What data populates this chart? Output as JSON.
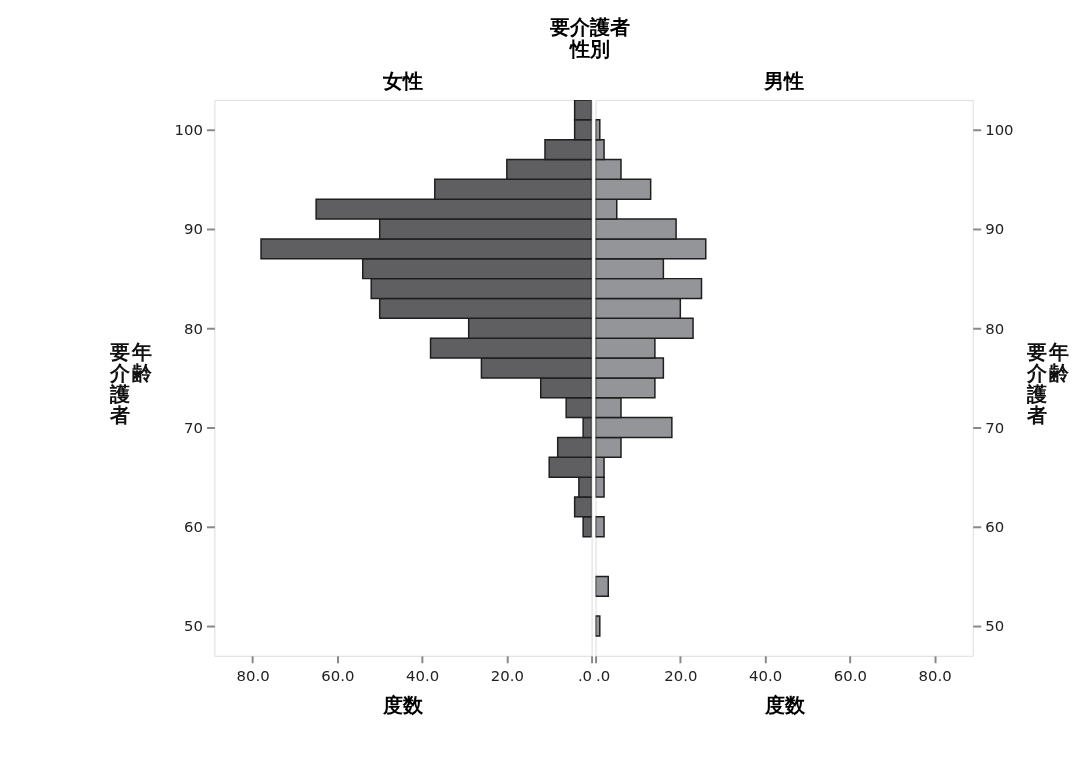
{
  "chart_data": [
    {
      "type": "histogram",
      "orientation": "horizontal",
      "title": "女性",
      "annotations": [
        "要介護者性別"
      ],
      "xlabel": "度数",
      "ylabel": "要介護者年齢",
      "color": "#5f5f62",
      "bins": [
        49,
        51,
        53,
        55,
        57,
        59,
        61,
        63,
        65,
        67,
        69,
        71,
        73,
        75,
        77,
        79,
        81,
        83,
        85,
        87,
        89,
        91,
        93,
        95,
        97,
        99,
        101,
        103
      ],
      "values": [
        0,
        0,
        0,
        0,
        0,
        2,
        4,
        3,
        10,
        8,
        2,
        6,
        12,
        26,
        38,
        29,
        50,
        52,
        54,
        78,
        50,
        65,
        37,
        20,
        11,
        4,
        4
      ],
      "xlim": [
        89,
        0
      ],
      "xticks": [
        {
          "value": 80,
          "label": "80.0"
        },
        {
          "value": 60,
          "label": "60.0"
        },
        {
          "value": 40,
          "label": "40.0"
        },
        {
          "value": 20,
          "label": "20.0"
        },
        {
          "value": 0,
          "label": ".0"
        }
      ],
      "ylim": [
        47,
        103
      ],
      "yticks": [
        50,
        60,
        70,
        80,
        90,
        100
      ],
      "grid": false
    },
    {
      "type": "histogram",
      "orientation": "horizontal",
      "title": "男性",
      "xlabel": "度数",
      "ylabel": "要介護者年齢",
      "color": "#939598",
      "bins": [
        49,
        51,
        53,
        55,
        57,
        59,
        61,
        63,
        65,
        67,
        69,
        71,
        73,
        75,
        77,
        79,
        81,
        83,
        85,
        87,
        89,
        91,
        93,
        95,
        97,
        99,
        101,
        103
      ],
      "values": [
        1,
        0,
        3,
        0,
        0,
        2,
        0,
        2,
        2,
        6,
        18,
        6,
        14,
        16,
        14,
        23,
        20,
        25,
        16,
        26,
        19,
        5,
        13,
        6,
        2,
        1,
        0
      ],
      "xlim": [
        0,
        89
      ],
      "xticks": [
        {
          "value": 0,
          "label": ".0"
        },
        {
          "value": 20,
          "label": "20.0"
        },
        {
          "value": 40,
          "label": "40.0"
        },
        {
          "value": 60,
          "label": "60.0"
        },
        {
          "value": 80,
          "label": "80.0"
        }
      ],
      "ylim": [
        47,
        103
      ],
      "yticks": [
        50,
        60,
        70,
        80,
        90,
        100
      ],
      "grid": false
    }
  ]
}
